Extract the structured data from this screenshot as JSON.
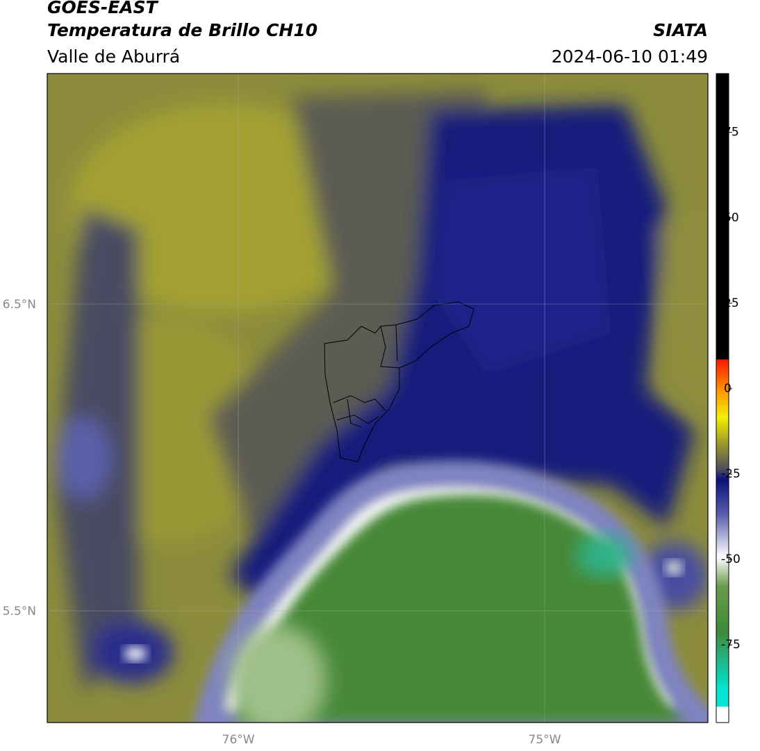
{
  "header": {
    "title": "GOES-EAST",
    "subtitle": "Temperatura de Brillo CH10",
    "region": "Valle de Aburrá",
    "agency": "SIATA",
    "datetime": "2024-06-10 01:49"
  },
  "map": {
    "lon_range": [
      -76.624,
      -74.467
    ],
    "lat_range": [
      5.136,
      7.251
    ],
    "lat_ticks": [
      {
        "value": 6.5,
        "label": "6.5°N"
      },
      {
        "value": 5.5,
        "label": "5.5°N"
      }
    ],
    "lon_ticks": [
      {
        "value": -76,
        "label": "76°W"
      },
      {
        "value": -75,
        "label": "75°W"
      }
    ]
  },
  "colorbar": {
    "range": [
      -97.7,
      92.2
    ],
    "ticks": [
      75,
      50,
      25,
      0,
      -25,
      -50,
      -75
    ]
  }
}
